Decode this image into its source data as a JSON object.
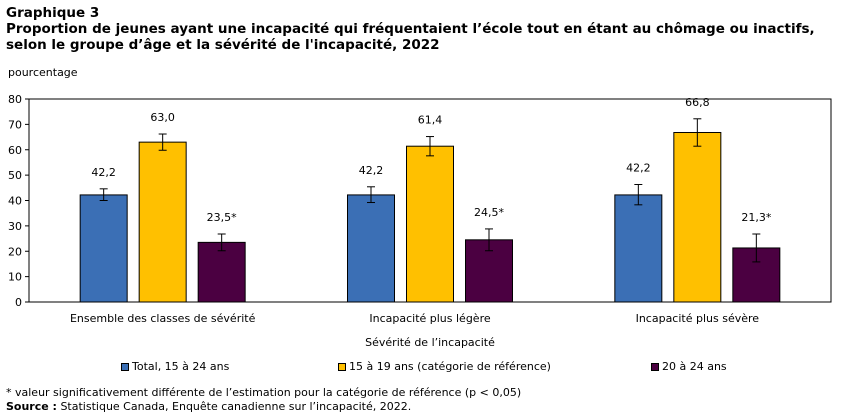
{
  "header": {
    "graphic_label": "Graphique 3",
    "title": "Proportion de jeunes ayant une incapacité qui fréquentaient l’école tout en étant au chômage ou inactifs, selon le groupe d’âge et la sévérité de l'incapacité, 2022"
  },
  "footer": {
    "footnote": "* valeur significativement différente de l’estimation pour la catégorie de référence (p < 0,05)",
    "source_label": "Source :",
    "source_text": " Statistique Canada, Enquête canadienne sur l’incapacité, 2022."
  },
  "chart_data": {
    "type": "bar",
    "ylabel": "pourcentage",
    "xlabel": "Sévérité de l’incapacité",
    "ylim": [
      0,
      80
    ],
    "yticks": [
      0,
      10,
      20,
      30,
      40,
      50,
      60,
      70,
      80
    ],
    "grid": false,
    "legend_position": "bottom",
    "categories": [
      "Ensemble des classes de sévérité",
      "Incapacité plus légère",
      "Incapacité plus sévère"
    ],
    "series": [
      {
        "name": "Total, 15 à 24 ans",
        "color": "#3b6fb5",
        "values": [
          42.2,
          42.2,
          42.2
        ],
        "labels": [
          "42,2",
          "42,2",
          "42,2"
        ],
        "error_low": [
          40.0,
          39.2,
          38.3
        ],
        "error_high": [
          44.6,
          45.4,
          46.3
        ]
      },
      {
        "name": "15 à 19 ans (catégorie de référence)",
        "color": "#ffc000",
        "values": [
          63.0,
          61.4,
          66.8
        ],
        "labels": [
          "63,0",
          "61,4",
          "66,8"
        ],
        "error_low": [
          59.8,
          57.6,
          61.4
        ],
        "error_high": [
          66.2,
          65.2,
          72.2
        ]
      },
      {
        "name": "20 à 24 ans",
        "color": "#4b0041",
        "values": [
          23.5,
          24.5,
          21.3
        ],
        "labels": [
          "23,5*",
          "24,5*",
          "21,3*"
        ],
        "error_low": [
          20.2,
          20.2,
          15.8
        ],
        "error_high": [
          26.8,
          28.8,
          26.8
        ]
      }
    ]
  }
}
